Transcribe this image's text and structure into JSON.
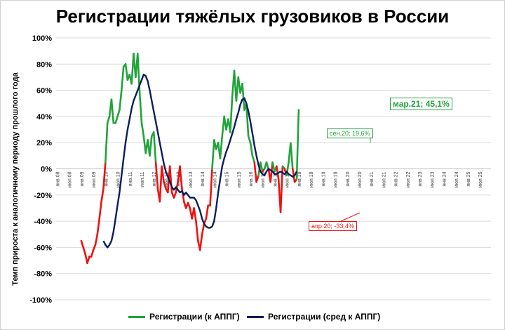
{
  "title": "Регистрации тяжёлых грузовиков в России",
  "ylabel": "Темп прироста к аналогичному периоду прошлого года",
  "legend": [
    {
      "label": "Регистрации (к АППГ)",
      "color": "#22a33a"
    },
    {
      "label": "Регистрации (сред к АППГ)",
      "color": "#0b1e5b"
    }
  ],
  "annotations": {
    "mar21": "мар.21; 45,1%",
    "sep20": "сен.20; 19,6%",
    "apr20": "апр.20; -33,4%"
  },
  "colors": {
    "positive": "#22a33a",
    "negative": "#ee1111",
    "average": "#0b1e5b",
    "grid": "#d9d9d9"
  },
  "chart_data": {
    "type": "line",
    "title": "Регистрации тяжёлых грузовиков в России",
    "ylabel": "Темп прироста к аналогичному периоду прошлого года",
    "ylim": [
      -1.0,
      1.0
    ],
    "yticks": [
      "100%",
      "80%",
      "60%",
      "40%",
      "20%",
      "0%",
      "-20%",
      "-40%",
      "-60%",
      "-80%",
      "-100%"
    ],
    "xtick_labels": [
      "янв.08",
      "июл.08",
      "янв.09",
      "июл.09",
      "янв.10",
      "июл.10",
      "янв.11",
      "июл.11",
      "янв.12",
      "июл.12",
      "янв.13",
      "июл.13",
      "янв.14",
      "июл.14",
      "янв.15",
      "июл.15",
      "янв.16",
      "июл.16",
      "янв.17",
      "июл.17",
      "янв.18",
      "июл.18",
      "янв.19",
      "июл.19",
      "янв.20",
      "июл.20",
      "янв.21",
      "июл.21",
      "янв.22",
      "июл.22",
      "янв.23",
      "июл.23",
      "янв.24",
      "июл.24",
      "янв.25",
      "июл.25"
    ],
    "grid": true,
    "legend_position": "bottom",
    "series": [
      {
        "name": "Регистрации (к АППГ)",
        "start": "янв.09",
        "note": "monthly values, green when >= 0, red when < 0",
        "values": [
          -0.55,
          -0.6,
          -0.65,
          -0.72,
          -0.67,
          -0.67,
          -0.62,
          -0.58,
          -0.5,
          -0.38,
          -0.25,
          -0.15,
          0.05,
          0.35,
          0.4,
          0.53,
          0.35,
          0.35,
          0.4,
          0.45,
          0.6,
          0.78,
          0.8,
          0.68,
          0.72,
          0.65,
          0.88,
          0.7,
          0.88,
          0.58,
          0.35,
          0.25,
          0.12,
          0.22,
          0.1,
          0.25,
          0.28,
          0.05,
          -0.15,
          -0.25,
          0.02,
          -0.1,
          -0.15,
          -0.18,
          0.02,
          -0.18,
          -0.22,
          -0.18,
          -0.1,
          0.02,
          -0.15,
          -0.25,
          -0.3,
          -0.26,
          -0.3,
          -0.38,
          -0.3,
          -0.4,
          -0.55,
          -0.62,
          -0.5,
          -0.42,
          -0.38,
          -0.28,
          -0.28,
          0.0,
          0.22,
          0.15,
          0.2,
          0.08,
          0.25,
          0.4,
          0.3,
          0.38,
          0.28,
          0.55,
          0.75,
          0.52,
          0.7,
          0.58,
          0.65,
          0.45,
          0.5,
          0.25,
          0.2,
          0.1,
          0.05,
          -0.1,
          -0.05,
          0.05,
          -0.02,
          0.0,
          0.05,
          0.0,
          -0.1,
          0.05,
          -0.02,
          0.02,
          -0.08,
          -0.33,
          0.02,
          0.0,
          -0.05,
          0.05,
          0.196,
          0.0,
          -0.1,
          -0.08,
          0.451
        ]
      },
      {
        "name": "Регистрации (сред к АППГ)",
        "start": "дек.09",
        "values": [
          -0.55,
          -0.58,
          -0.6,
          -0.58,
          -0.55,
          -0.48,
          -0.38,
          -0.28,
          -0.18,
          -0.05,
          0.08,
          0.2,
          0.3,
          0.38,
          0.46,
          0.52,
          0.56,
          0.6,
          0.64,
          0.68,
          0.72,
          0.71,
          0.67,
          0.6,
          0.52,
          0.44,
          0.36,
          0.28,
          0.2,
          0.12,
          0.04,
          -0.02,
          -0.06,
          -0.1,
          -0.14,
          -0.16,
          -0.14,
          -0.16,
          -0.18,
          -0.17,
          -0.2,
          -0.18,
          -0.2,
          -0.22,
          -0.22,
          -0.22,
          -0.24,
          -0.28,
          -0.32,
          -0.38,
          -0.42,
          -0.44,
          -0.45,
          -0.45,
          -0.44,
          -0.4,
          -0.3,
          -0.18,
          -0.08,
          0.02,
          0.08,
          0.13,
          0.17,
          0.22,
          0.27,
          0.32,
          0.38,
          0.43,
          0.49,
          0.53,
          0.54,
          0.5,
          0.44,
          0.36,
          0.27,
          0.18,
          0.1,
          0.03,
          -0.02,
          -0.04,
          -0.05,
          -0.02,
          0.0,
          -0.01,
          -0.02,
          -0.04,
          -0.04,
          -0.03,
          -0.02,
          -0.03,
          -0.04,
          -0.02,
          -0.04,
          -0.05,
          -0.06,
          -0.05,
          -0.02
        ]
      }
    ]
  }
}
